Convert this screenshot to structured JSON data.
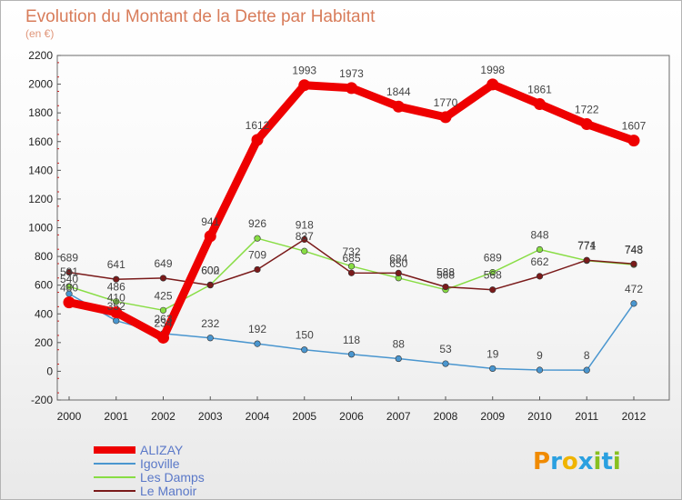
{
  "chart_data": {
    "type": "line",
    "title": "Evolution du Montant de la Dette par Habitant",
    "subtitle": "(en €)",
    "xlabel": "",
    "ylabel": "",
    "categories": [
      "2000",
      "2001",
      "2002",
      "2003",
      "2004",
      "2005",
      "2006",
      "2007",
      "2008",
      "2009",
      "2010",
      "2011",
      "2012"
    ],
    "ylim": [
      -200,
      2200
    ],
    "yticks": [
      -200,
      0,
      200,
      400,
      600,
      800,
      1000,
      1200,
      1400,
      1600,
      1800,
      2000,
      2200
    ],
    "grid": false,
    "legend_position": "bottom-left",
    "series": [
      {
        "name": "ALIZAY",
        "color": "#ee0000",
        "emphasis": true,
        "values": [
          480,
          410,
          234,
          941,
          1612,
          1993,
          1973,
          1844,
          1770,
          1998,
          1861,
          1722,
          1607
        ]
      },
      {
        "name": "Igoville",
        "color": "#4a96cf",
        "emphasis": false,
        "values": [
          540,
          352,
          263,
          232,
          192,
          150,
          118,
          88,
          53,
          19,
          9,
          8,
          472
        ]
      },
      {
        "name": "Les Damps",
        "color": "#88dd44",
        "emphasis": false,
        "values": [
          591,
          486,
          425,
          602,
          926,
          837,
          732,
          650,
          568,
          689,
          848,
          771,
          743
        ]
      },
      {
        "name": "Le Manoir",
        "color": "#7a1a1a",
        "emphasis": false,
        "values": [
          689,
          641,
          649,
          600,
          709,
          918,
          685,
          684,
          588,
          568,
          662,
          774,
          748
        ]
      }
    ]
  },
  "brand": {
    "name": "Proxiti",
    "letters": [
      "P",
      "r",
      "o",
      "x",
      "i",
      "t",
      "i"
    ],
    "colors": [
      "#f08a00",
      "#2aa0e0",
      "#f0b400",
      "#2aa0e0",
      "#88c020",
      "#2aa0e0",
      "#88c020"
    ]
  }
}
